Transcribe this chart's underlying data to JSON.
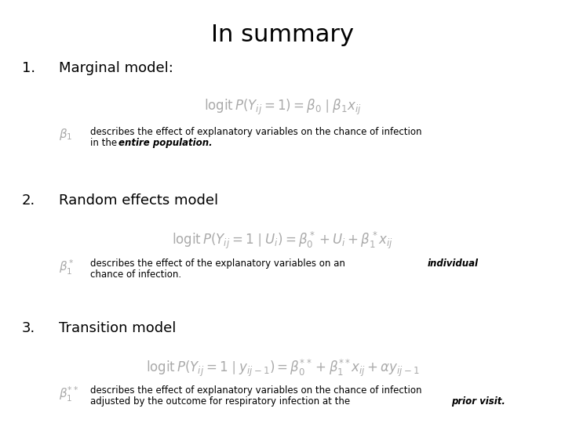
{
  "title": "In summary",
  "title_fontsize": 22,
  "bg_color": "#ffffff",
  "text_color": "#000000",
  "gray_color": "#aaaaaa",
  "heading_fontsize": 13,
  "formula_fontsize": 12,
  "beta_fontsize": 11,
  "desc_fontsize": 8.5,
  "sections": [
    {
      "number": "1.",
      "heading": "Marginal model:",
      "formula": "\\operatorname{logit}P(Y_{ij}=1)=\\beta_0 \\mid \\beta_1 x_{ij}",
      "beta_symbol": "\\beta_1",
      "desc_line1": "describes the effect of explanatory variables on the chance of infection",
      "desc_line2_prefix": "in the ",
      "desc_line2_bold": "entire population.",
      "desc_line2_suffix": "",
      "individual_inline": false
    },
    {
      "number": "2.",
      "heading": "Random effects model",
      "formula": "\\operatorname{logit}P(Y_{ij}=1\\mid U_i)=\\beta_0^*+U_i+\\beta_1^* x_{ij}",
      "beta_symbol": "\\beta_1^*",
      "desc_line1": "describes the effect of the explanatory variables on an",
      "desc_line1_bold": "individual",
      "desc_line2": "chance of infection.",
      "individual_inline": true
    },
    {
      "number": "3.",
      "heading": "Transition model",
      "formula": "\\operatorname{logit}P(Y_{ij}=1\\mid y_{ij-1})=\\beta_0^{**}+\\beta_1^{**}x_{ij}+\\alpha y_{ij-1}",
      "beta_symbol": "\\beta_1^{**}",
      "desc_line1": "describes the effect of explanatory variables on the chance of infection",
      "desc_line2_prefix": "adjusted by the outcome for respiratory infection at the ",
      "desc_line2_bold": "prior visit.",
      "desc_line2_suffix": "",
      "individual_inline": false
    }
  ]
}
